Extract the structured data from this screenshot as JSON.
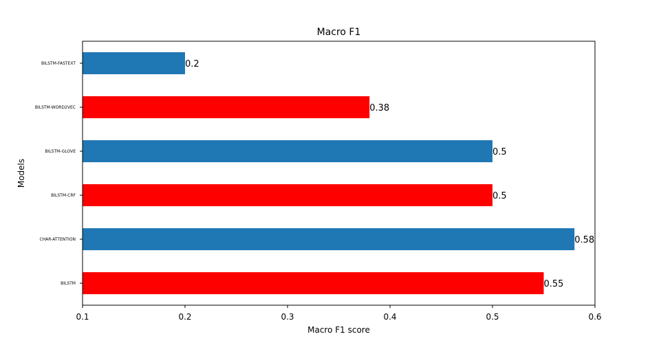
{
  "chart_data": {
    "type": "bar",
    "orientation": "horizontal",
    "title": "Macro F1",
    "xlabel": "Macro F1 score",
    "ylabel": "Models",
    "categories": [
      "BILSTM",
      "CHAR-ATTENTION",
      "BILSTM-CRF",
      "BILSTM-GLOVE",
      "BILSTM-WORD2VEC",
      "BILSTM-FASTEXT"
    ],
    "values": [
      0.55,
      0.58,
      0.5,
      0.5,
      0.38,
      0.2
    ],
    "data_labels": [
      "0.55",
      "0.58",
      "0.5",
      "0.5",
      "0.38",
      "0.2"
    ],
    "bar_colors": [
      "#ff0000",
      "#1f77b4",
      "#ff0000",
      "#1f77b4",
      "#ff0000",
      "#1f77b4"
    ],
    "xlim": [
      0.1,
      0.6
    ],
    "xticks": [
      0.1,
      0.2,
      0.3,
      0.4,
      0.5,
      0.6
    ],
    "xtick_labels": [
      "0.1",
      "0.2",
      "0.3",
      "0.4",
      "0.5",
      "0.6"
    ],
    "grid": false,
    "legend": "none"
  }
}
